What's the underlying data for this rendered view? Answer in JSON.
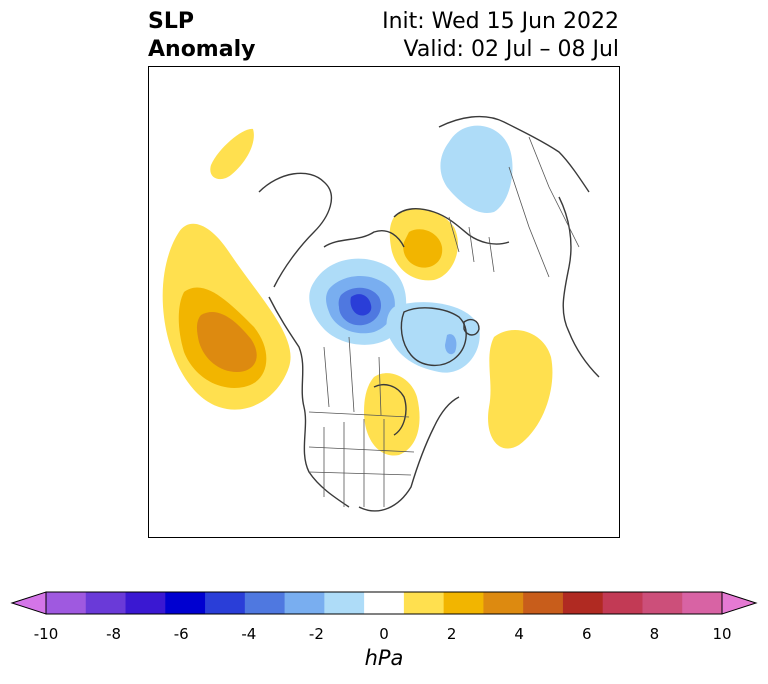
{
  "title": {
    "left_line1": "SLP",
    "left_line2": "Anomaly",
    "right_line1": "Init: Wed 15 Jun 2022",
    "right_line2": "Valid: 02 Jul – 08 Jul"
  },
  "colorbar": {
    "unit": "hPa",
    "ticks": [
      "-10",
      "-8",
      "-6",
      "-4",
      "-2",
      "0",
      "2",
      "4",
      "6",
      "8",
      "10"
    ],
    "colors": [
      "#d475e8",
      "#9f59e0",
      "#6a3ad8",
      "#3a18d2",
      "#0000d0",
      "#2a3ed8",
      "#4f78e0",
      "#79aef0",
      "#aedcf8",
      "#ffffff",
      "#ffe04f",
      "#f2b500",
      "#dd8a10",
      "#c85d1b",
      "#b02a22",
      "#c23a55",
      "#cc4f7a",
      "#d863a4",
      "#e57ad3"
    ]
  },
  "map": {
    "anomalies": [
      {
        "name": "pacific-high",
        "sign": "positive",
        "peak_hpa": 4
      },
      {
        "name": "arctic-canada-low",
        "sign": "negative",
        "peak_hpa": -5
      },
      {
        "name": "hudson-bay-high",
        "sign": "positive",
        "peak_hpa": 2
      },
      {
        "name": "greenland-low",
        "sign": "negative",
        "peak_hpa": -2
      },
      {
        "name": "scandinavia-high",
        "sign": "positive",
        "peak_hpa": 3
      },
      {
        "name": "siberia-low",
        "sign": "negative",
        "peak_hpa": -2
      },
      {
        "name": "north-atlantic-high",
        "sign": "positive",
        "peak_hpa": 2
      },
      {
        "name": "bering-high",
        "sign": "positive",
        "peak_hpa": 2
      }
    ]
  }
}
